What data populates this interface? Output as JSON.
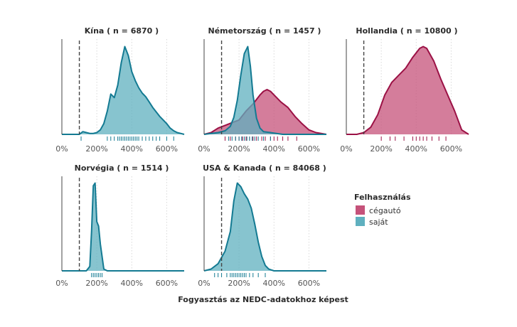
{
  "chart_data": {
    "type": "area",
    "subtype": "density",
    "xlabel": "Fogyasztás az NEDC-adatokhoz képest",
    "xlim": [
      0,
      700
    ],
    "xticks": [
      0,
      200,
      400,
      600
    ],
    "tick_labels": [
      "0%",
      "200%",
      "400%",
      "600%"
    ],
    "reference_line_x": 100,
    "legend": {
      "title": "Felhasználás",
      "entries": [
        {
          "key": "cegauto",
          "label": "cégautó",
          "color": "#c5527a"
        },
        {
          "key": "sajat",
          "label": "saját",
          "color": "#5fb0bf"
        }
      ]
    },
    "colors": {
      "cegauto_fill": "#c5527a",
      "cegauto_line": "#9b1145",
      "sajat_fill": "#5fb0bf",
      "sajat_line": "#137a92",
      "grid": "#d9d9d9",
      "axis": "#444444",
      "ref": "#444444"
    },
    "panels": [
      {
        "title": "Kína ( n = 6870 )",
        "series": [
          {
            "key": "sajat",
            "x": [
              0,
              100,
              120,
              140,
              160,
              180,
              200,
              220,
              240,
              260,
              280,
              300,
              320,
              340,
              360,
              380,
              400,
              420,
              440,
              460,
              480,
              500,
              520,
              540,
              560,
              580,
              600,
              620,
              640,
              660,
              680,
              700
            ],
            "y": [
              0.0,
              0.0,
              0.03,
              0.02,
              0.01,
              0.01,
              0.02,
              0.05,
              0.12,
              0.26,
              0.45,
              0.41,
              0.55,
              0.8,
              0.98,
              0.88,
              0.7,
              0.6,
              0.52,
              0.46,
              0.42,
              0.36,
              0.3,
              0.25,
              0.2,
              0.16,
              0.12,
              0.07,
              0.04,
              0.02,
              0.01,
              0.0
            ],
            "rug": [
              110,
              260,
              280,
              300,
              320,
              330,
              340,
              350,
              360,
              370,
              380,
              390,
              400,
              410,
              420,
              430,
              440,
              460,
              480,
              500,
              520,
              540,
              560,
              600,
              640
            ]
          }
        ]
      },
      {
        "title": "Németország ( n = 1457 )",
        "series": [
          {
            "key": "cegauto",
            "x": [
              0,
              40,
              80,
              120,
              160,
              200,
              240,
              280,
              320,
              340,
              360,
              380,
              400,
              440,
              480,
              520,
              560,
              600,
              640,
              700
            ],
            "y": [
              0.0,
              0.02,
              0.07,
              0.1,
              0.13,
              0.16,
              0.26,
              0.34,
              0.44,
              0.48,
              0.5,
              0.48,
              0.44,
              0.36,
              0.3,
              0.2,
              0.12,
              0.05,
              0.02,
              0.0
            ],
            "rug": [
              120,
              150,
              180,
              200,
              220,
              240,
              260,
              280,
              300,
              330,
              350,
              380,
              400,
              420,
              450,
              480,
              530
            ]
          },
          {
            "key": "sajat",
            "x": [
              0,
              80,
              120,
              150,
              170,
              190,
              210,
              230,
              250,
              265,
              280,
              300,
              320,
              340,
              380,
              450,
              700
            ],
            "y": [
              0.0,
              0.02,
              0.04,
              0.09,
              0.19,
              0.38,
              0.66,
              0.9,
              0.98,
              0.76,
              0.44,
              0.18,
              0.07,
              0.03,
              0.02,
              0.0,
              0.0
            ],
            "rug": [
              140,
              160,
              180,
              200,
              215,
              230,
              245,
              260,
              275,
              290,
              310,
              340,
              380
            ]
          }
        ]
      },
      {
        "title": "Hollandia ( n = 10800 )",
        "series": [
          {
            "key": "cegauto",
            "x": [
              0,
              60,
              100,
              140,
              180,
              220,
              260,
              300,
              340,
              380,
              420,
              440,
              460,
              500,
              540,
              580,
              620,
              660,
              700
            ],
            "y": [
              0.0,
              0.0,
              0.02,
              0.08,
              0.22,
              0.44,
              0.58,
              0.66,
              0.74,
              0.86,
              0.96,
              0.98,
              0.96,
              0.82,
              0.62,
              0.44,
              0.26,
              0.05,
              0.0
            ],
            "rug": [
              200,
              250,
              280,
              330,
              380,
              400,
              420,
              440,
              460,
              490,
              530,
              570
            ]
          }
        ]
      },
      {
        "title": "Norvégia ( n = 1514 )",
        "series": [
          {
            "key": "sajat",
            "x": [
              0,
              140,
              160,
              170,
              180,
              190,
              200,
              210,
              220,
              240,
              260,
              700
            ],
            "y": [
              0.0,
              0.0,
              0.05,
              0.45,
              0.95,
              0.98,
              0.55,
              0.5,
              0.3,
              0.02,
              0.0,
              0.0
            ],
            "rug": [
              170,
              180,
              190,
              200,
              210,
              220,
              230
            ]
          }
        ]
      },
      {
        "title": "USA & Kanada ( n = 84068 )",
        "series": [
          {
            "key": "sajat",
            "x": [
              0,
              40,
              80,
              120,
              150,
              170,
              190,
              210,
              230,
              250,
              270,
              290,
              310,
              330,
              350,
              370,
              400,
              700
            ],
            "y": [
              0.0,
              0.02,
              0.08,
              0.22,
              0.44,
              0.78,
              0.98,
              0.94,
              0.86,
              0.8,
              0.7,
              0.52,
              0.32,
              0.16,
              0.06,
              0.02,
              0.0,
              0.0
            ],
            "rug": [
              60,
              80,
              100,
              130,
              150,
              160,
              170,
              180,
              190,
              200,
              210,
              220,
              230,
              240,
              260,
              280,
              310,
              350
            ]
          }
        ]
      }
    ]
  }
}
